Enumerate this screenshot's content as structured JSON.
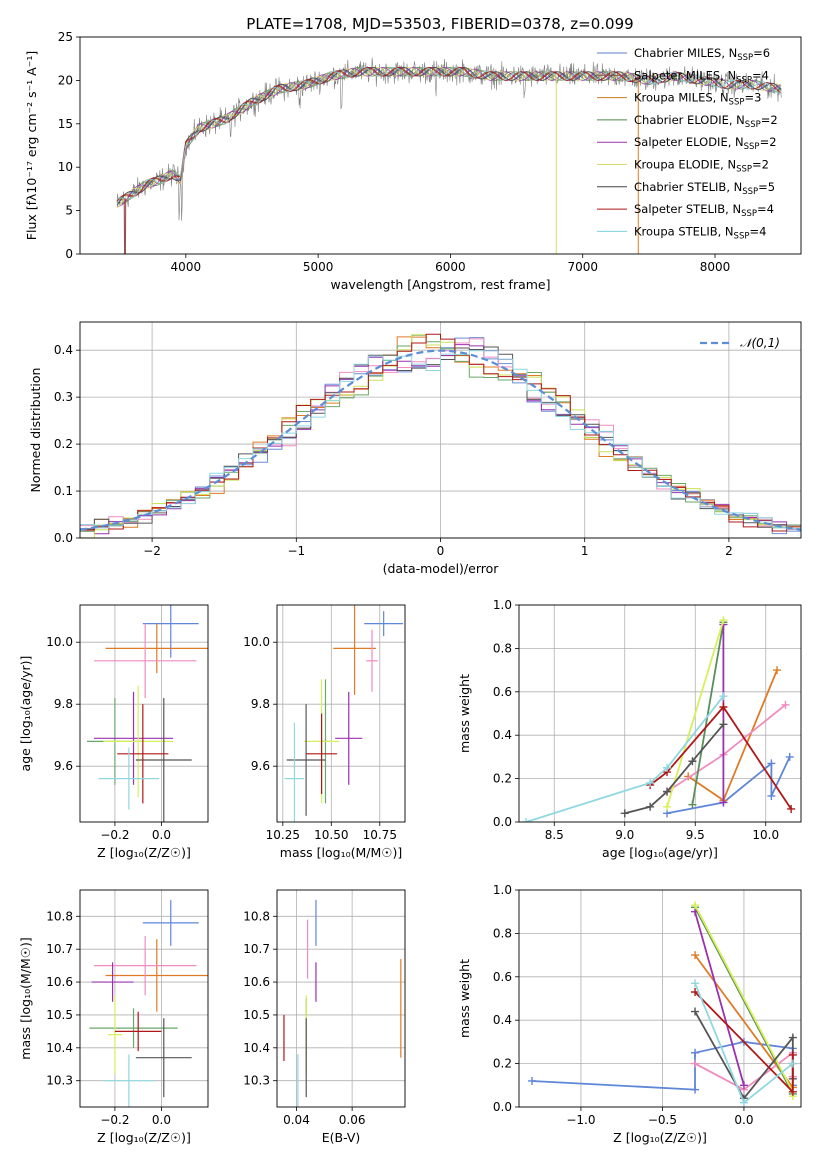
{
  "figure": {
    "title": "PLATE=1708, MJD=53503, FIBERID=0378, z=0.099"
  },
  "chart_data": [
    {
      "id": "spectrum",
      "type": "line",
      "title": "PLATE=1708, MJD=53503, FIBERID=0378, z=0.099",
      "xlabel": "wavelength [Angstrom, rest frame]",
      "ylabel": "Flux [fλ10⁻¹⁷ erg cm⁻² s⁻¹ A⁻¹]",
      "xlim": [
        3200,
        8650
      ],
      "ylim": [
        0,
        25
      ],
      "xticks": [
        4000,
        5000,
        6000,
        7000,
        8000
      ],
      "yticks": [
        0,
        5,
        10,
        15,
        20,
        25
      ],
      "grid": false,
      "legend_position": "upper right",
      "data_series": {
        "name": "data",
        "color": "#808080"
      },
      "continuum_points": [
        [
          3480,
          5.8
        ],
        [
          3600,
          7.0
        ],
        [
          3700,
          8.0
        ],
        [
          3800,
          8.5
        ],
        [
          3900,
          9.2
        ],
        [
          3960,
          8.5
        ],
        [
          4000,
          12.5
        ],
        [
          4100,
          14.5
        ],
        [
          4200,
          15.0
        ],
        [
          4300,
          15.5
        ],
        [
          4400,
          16.5
        ],
        [
          4500,
          17.5
        ],
        [
          4700,
          19.0
        ],
        [
          4900,
          19.5
        ],
        [
          5100,
          20.5
        ],
        [
          5300,
          21.0
        ],
        [
          5500,
          21.0
        ],
        [
          5700,
          21.0
        ],
        [
          5900,
          21.0
        ],
        [
          6100,
          21.0
        ],
        [
          6300,
          20.5
        ],
        [
          6500,
          20.5
        ],
        [
          6700,
          20.5
        ],
        [
          6900,
          20.5
        ],
        [
          7100,
          20.5
        ],
        [
          7300,
          20.5
        ],
        [
          7500,
          20.0
        ],
        [
          7700,
          20.5
        ],
        [
          7900,
          20.0
        ],
        [
          8100,
          19.5
        ],
        [
          8300,
          19.5
        ],
        [
          8500,
          19.0
        ]
      ],
      "series": [
        {
          "name": "Chabrier MILES, N_SSP=6",
          "label_base": "Chabrier MILES, N",
          "label_value": "=6",
          "color": "#5f7fc9"
        },
        {
          "name": "Salpeter MILES, N_SSP=4",
          "label_base": "Salpeter MILES, N",
          "label_value": "=4",
          "color": "#8b4a3b"
        },
        {
          "name": "Kroupa MILES, N_SSP=3",
          "label_base": "Kroupa MILES, N",
          "label_value": "=3",
          "color": "#cc7a1a"
        },
        {
          "name": "Chabrier ELODIE, N_SSP=2",
          "label_base": "Chabrier ELODIE, N",
          "label_value": "=2",
          "color": "#4e8b4e"
        },
        {
          "name": "Salpeter ELODIE, N_SSP=2",
          "label_base": "Salpeter ELODIE, N",
          "label_value": "=2",
          "color": "#9b30b0"
        },
        {
          "name": "Kroupa ELODIE, N_SSP=2",
          "label_base": "Kroupa ELODIE, N",
          "label_value": "=2",
          "color": "#d8dc6a"
        },
        {
          "name": "Chabrier STELIB, N_SSP=5",
          "label_base": "Chabrier STELIB, N",
          "label_value": "=5",
          "color": "#444444"
        },
        {
          "name": "Salpeter STELIB, N_SSP=4",
          "label_base": "Salpeter STELIB, N",
          "label_value": "=4",
          "color": "#b01818"
        },
        {
          "name": "Kroupa STELIB, N_SSP=4",
          "label_base": "Kroupa STELIB, N",
          "label_value": "=4",
          "color": "#7fd0dc"
        }
      ],
      "legend_subscript": "SSP"
    },
    {
      "id": "residuals",
      "type": "line",
      "xlabel": "(data-model)/error",
      "ylabel": "Normed distribution",
      "xlim": [
        -2.5,
        2.5
      ],
      "ylim": [
        0,
        0.46
      ],
      "xticks": [
        -2,
        -1,
        0,
        1,
        2
      ],
      "yticks": [
        0.0,
        0.1,
        0.2,
        0.3,
        0.4
      ],
      "grid": true,
      "legend": "𝒩(0,1)",
      "legend_position": "upper right",
      "gaussian_color": "#5b8ed6",
      "bin_width": 0.1,
      "hist_colors": [
        "#6a8fd8",
        "#e07b25",
        "#f08cc0",
        "#6aa76a",
        "#9b30b0",
        "#c9e05a",
        "#555555",
        "#b01818",
        "#8fd8e0"
      ]
    },
    {
      "id": "age_vs_Z",
      "type": "scatter",
      "xlabel": "Z [log₁₀(Z/Z☉)]",
      "ylabel": "age  [log₁₀(age/yr)]",
      "xlim": [
        -0.35,
        0.2
      ],
      "ylim": [
        9.42,
        10.12
      ],
      "xticks": [
        -0.2,
        0.0
      ],
      "yticks": [
        9.6,
        9.8,
        10.0
      ],
      "grid": true,
      "points": [
        {
          "x": 0.04,
          "xerr": 0.12,
          "y": 10.06,
          "yerr": 0.11,
          "color": "#5f86d8"
        },
        {
          "x": -0.02,
          "xerr": 0.22,
          "y": 9.98,
          "yerr": 0.08,
          "color": "#e07b25"
        },
        {
          "x": -0.07,
          "xerr": 0.22,
          "y": 9.94,
          "yerr": 0.12,
          "color": "#f08cc0"
        },
        {
          "x": -0.2,
          "xerr": 0.12,
          "y": 9.68,
          "yerr": 0.14,
          "color": "#6aa76a"
        },
        {
          "x": -0.12,
          "xerr": 0.17,
          "y": 9.69,
          "yerr": 0.15,
          "color": "#9b30b0"
        },
        {
          "x": -0.1,
          "xerr": 0.15,
          "y": 9.68,
          "yerr": 0.18,
          "color": "#d7f05a"
        },
        {
          "x": 0.01,
          "xerr": 0.12,
          "y": 9.62,
          "yerr": 0.2,
          "color": "#555555"
        },
        {
          "x": -0.08,
          "xerr": 0.11,
          "y": 9.64,
          "yerr": 0.16,
          "color": "#b01818"
        },
        {
          "x": -0.14,
          "xerr": 0.13,
          "y": 9.56,
          "yerr": 0.1,
          "color": "#8fd8e0"
        }
      ]
    },
    {
      "id": "age_vs_mass",
      "type": "scatter",
      "xlabel": "mass [log₁₀(M/M☉)]",
      "ylabel": "",
      "xlim": [
        10.22,
        10.88
      ],
      "ylim": [
        9.42,
        10.12
      ],
      "xticks": [
        10.25,
        10.5,
        10.75
      ],
      "tick_labels": [
        "10.25",
        "10.50",
        "10.75"
      ],
      "yticks": [
        9.6,
        9.8,
        10.0
      ],
      "grid": true,
      "points": [
        {
          "x": 10.77,
          "xerr": 0.1,
          "y": 10.06,
          "yerr": 0.04,
          "color": "#5f86d8"
        },
        {
          "x": 10.62,
          "xerr": 0.11,
          "y": 9.98,
          "yerr": 0.15,
          "color": "#e07b25"
        },
        {
          "x": 10.71,
          "xerr": 0.03,
          "y": 9.94,
          "yerr": 0.1,
          "color": "#f08cc0"
        },
        {
          "x": 10.47,
          "xerr": 0.02,
          "y": 9.68,
          "yerr": 0.2,
          "color": "#6aa76a"
        },
        {
          "x": 10.59,
          "xerr": 0.07,
          "y": 9.69,
          "yerr": 0.15,
          "color": "#9b30b0"
        },
        {
          "x": 10.45,
          "xerr": 0.09,
          "y": 9.68,
          "yerr": 0.2,
          "color": "#d7f05a"
        },
        {
          "x": 10.37,
          "xerr": 0.1,
          "y": 9.62,
          "yerr": 0.18,
          "color": "#555555"
        },
        {
          "x": 10.45,
          "xerr": 0.08,
          "y": 9.64,
          "yerr": 0.13,
          "color": "#b01818"
        },
        {
          "x": 10.31,
          "xerr": 0.05,
          "y": 9.56,
          "yerr": 0.18,
          "color": "#8fd8e0"
        }
      ]
    },
    {
      "id": "massweight_vs_age",
      "type": "line",
      "xlabel": "age  [log₁₀(age/yr)]",
      "ylabel": "mass weight",
      "xlim": [
        8.25,
        10.25
      ],
      "ylim": [
        0,
        1.0
      ],
      "xticks": [
        8.5,
        9.0,
        9.5,
        10.0
      ],
      "yticks": [
        0.0,
        0.2,
        0.4,
        0.6,
        0.8,
        1.0
      ],
      "grid": true,
      "series": [
        {
          "color": "#5f86d8",
          "points": [
            [
              9.3,
              0.04
            ],
            [
              9.7,
              0.09
            ],
            [
              10.04,
              0.27
            ],
            [
              10.04,
              0.12
            ],
            [
              10.17,
              0.3
            ]
          ]
        },
        {
          "color": "#e07b25",
          "points": [
            [
              9.45,
              0.21
            ],
            [
              9.7,
              0.1
            ],
            [
              10.08,
              0.7
            ]
          ]
        },
        {
          "color": "#f08cc0",
          "points": [
            [
              9.3,
              0.14
            ],
            [
              9.7,
              0.31
            ],
            [
              10.14,
              0.54
            ]
          ]
        },
        {
          "color": "#5a8f5a",
          "points": [
            [
              9.48,
              0.08
            ],
            [
              9.7,
              0.92
            ]
          ]
        },
        {
          "color": "#9b30b0",
          "points": [
            [
              9.7,
              0.09
            ],
            [
              9.7,
              0.91
            ]
          ]
        },
        {
          "color": "#d7f05a",
          "points": [
            [
              9.3,
              0.07
            ],
            [
              9.7,
              0.93
            ]
          ]
        },
        {
          "color": "#555555",
          "points": [
            [
              9.0,
              0.04
            ],
            [
              9.18,
              0.07
            ],
            [
              9.3,
              0.14
            ],
            [
              9.48,
              0.28
            ],
            [
              9.7,
              0.45
            ]
          ]
        },
        {
          "color": "#b01818",
          "points": [
            [
              9.18,
              0.17
            ],
            [
              9.3,
              0.23
            ],
            [
              9.7,
              0.53
            ],
            [
              10.18,
              0.06
            ]
          ]
        },
        {
          "color": "#8fd8e0",
          "points": [
            [
              8.3,
              0.0
            ],
            [
              9.18,
              0.18
            ],
            [
              9.3,
              0.25
            ],
            [
              9.7,
              0.58
            ]
          ]
        }
      ]
    },
    {
      "id": "mass_vs_Z",
      "type": "scatter",
      "xlabel": "Z [log₁₀(Z/Z☉)]",
      "ylabel": "mass [log₁₀(M/M☉)]",
      "xlim": [
        -0.35,
        0.2
      ],
      "ylim": [
        10.22,
        10.88
      ],
      "xticks": [
        -0.2,
        0.0
      ],
      "yticks": [
        10.3,
        10.4,
        10.5,
        10.6,
        10.7,
        10.8
      ],
      "grid": true,
      "points": [
        {
          "x": 0.04,
          "xerr": 0.12,
          "y": 10.78,
          "yerr": 0.07,
          "color": "#5f86d8"
        },
        {
          "x": -0.02,
          "xerr": 0.22,
          "y": 10.62,
          "yerr": 0.11,
          "color": "#e07b25"
        },
        {
          "x": -0.07,
          "xerr": 0.22,
          "y": 10.65,
          "yerr": 0.09,
          "color": "#f08cc0"
        },
        {
          "x": -0.12,
          "xerr": 0.19,
          "y": 10.46,
          "yerr": 0.06,
          "color": "#6aa76a"
        },
        {
          "x": -0.21,
          "xerr": 0.09,
          "y": 10.6,
          "yerr": 0.06,
          "color": "#9b30b0"
        },
        {
          "x": -0.2,
          "xerr": 0.03,
          "y": 10.44,
          "yerr": 0.12,
          "color": "#d7f05a"
        },
        {
          "x": 0.01,
          "xerr": 0.12,
          "y": 10.37,
          "yerr": 0.12,
          "color": "#555555"
        },
        {
          "x": -0.1,
          "xerr": 0.1,
          "y": 10.45,
          "yerr": 0.06,
          "color": "#b01818"
        },
        {
          "x": -0.14,
          "xerr": 0.11,
          "y": 10.3,
          "yerr": 0.08,
          "color": "#8fd8e0"
        }
      ]
    },
    {
      "id": "ebv",
      "type": "scatter",
      "xlabel": "E(B-V)",
      "ylabel": "",
      "xlim": [
        0.033,
        0.079
      ],
      "ylim": [
        10.22,
        10.88
      ],
      "xticks": [
        0.04,
        0.06
      ],
      "tick_labels": [
        "0.04",
        "0.06"
      ],
      "yticks": [
        10.3,
        10.4,
        10.5,
        10.6,
        10.7,
        10.8
      ],
      "grid": true,
      "points": [
        {
          "x": 0.047,
          "y": 10.78,
          "yerr": 0.07,
          "color": "#5f86d8"
        },
        {
          "x": 0.0775,
          "y": 10.52,
          "yerr": 0.15,
          "color": "#e07b25"
        },
        {
          "x": 0.044,
          "y": 10.7,
          "yerr": 0.09,
          "color": "#f08cc0"
        },
        {
          "x": 0.0435,
          "y": 10.46,
          "yerr": 0.09,
          "color": "#6aa76a"
        },
        {
          "x": 0.047,
          "y": 10.6,
          "yerr": 0.06,
          "color": "#9b30b0"
        },
        {
          "x": 0.0435,
          "y": 10.44,
          "yerr": 0.12,
          "color": "#d7f05a"
        },
        {
          "x": 0.0435,
          "y": 10.37,
          "yerr": 0.12,
          "color": "#555555"
        },
        {
          "x": 0.0355,
          "y": 10.43,
          "yerr": 0.07,
          "color": "#b01818"
        },
        {
          "x": 0.0405,
          "y": 10.3,
          "yerr": 0.08,
          "color": "#8fd8e0"
        }
      ]
    },
    {
      "id": "massweight_vs_Z",
      "type": "line",
      "xlabel": "Z [log₁₀(Z/Z☉)]",
      "ylabel": "mass weight",
      "xlim": [
        -1.38,
        0.35
      ],
      "ylim": [
        0,
        1.0
      ],
      "xticks": [
        -1.0,
        -0.5,
        0.0
      ],
      "yticks": [
        0.0,
        0.2,
        0.4,
        0.6,
        0.8,
        1.0
      ],
      "grid": true,
      "series": [
        {
          "color": "#5f86d8",
          "points": [
            [
              -1.3,
              0.12
            ],
            [
              -0.3,
              0.08
            ],
            [
              -0.3,
              0.25
            ],
            [
              0.0,
              0.3
            ],
            [
              0.3,
              0.27
            ],
            [
              0.3,
              0.1
            ]
          ]
        },
        {
          "color": "#e07b25",
          "points": [
            [
              -0.3,
              0.7
            ],
            [
              0.3,
              0.09
            ],
            [
              0.3,
              0.2
            ]
          ]
        },
        {
          "color": "#f08cc0",
          "points": [
            [
              -0.3,
              0.2
            ],
            [
              0.0,
              0.08
            ],
            [
              0.3,
              0.25
            ],
            [
              0.3,
              0.14
            ]
          ]
        },
        {
          "color": "#5a8f5a",
          "points": [
            [
              -0.3,
              0.92
            ],
            [
              0.3,
              0.06
            ]
          ]
        },
        {
          "color": "#9b30b0",
          "points": [
            [
              -0.3,
              0.9
            ],
            [
              0.0,
              0.1
            ]
          ]
        },
        {
          "color": "#d7f05a",
          "points": [
            [
              -0.3,
              0.93
            ],
            [
              0.3,
              0.07
            ],
            [
              0.3,
              0.05
            ]
          ]
        },
        {
          "color": "#555555",
          "points": [
            [
              -0.3,
              0.44
            ],
            [
              0.0,
              0.04
            ],
            [
              0.3,
              0.32
            ],
            [
              0.3,
              0.13
            ]
          ]
        },
        {
          "color": "#b01818",
          "points": [
            [
              -0.3,
              0.53
            ],
            [
              0.3,
              0.07
            ],
            [
              0.3,
              0.24
            ]
          ]
        },
        {
          "color": "#8fd8e0",
          "points": [
            [
              -0.3,
              0.57
            ],
            [
              0.0,
              0.02
            ],
            [
              0.3,
              0.2
            ]
          ]
        }
      ]
    }
  ]
}
